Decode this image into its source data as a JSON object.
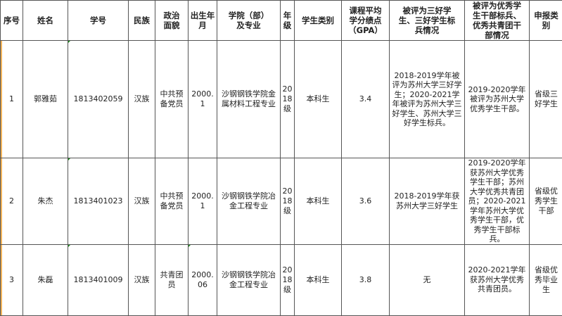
{
  "headers": [
    "序号",
    "姓名",
    "学号",
    "民族",
    "政治面貌",
    "出生年月",
    "学院（部）及专业",
    "年级",
    "学生类别",
    "课程平均学分绩点（GPA）",
    "被评为三好学生、三好学生标兵情况",
    "被评为优秀学生干部标兵、优秀共青团干部情况",
    "申报类别"
  ],
  "rows": [
    {
      "no": "1",
      "name": "郭雅茹",
      "id": "1813402059",
      "ethnicity": "汉族",
      "political": "中共预备党员",
      "birth": "2000.1",
      "college": "沙钢钢铁学院金属材料工程专业",
      "grade": "2018级",
      "type": "本科生",
      "gpa": "3.4",
      "merit": "2018-2019学年被评为苏州大学三好学生；2020-2021学年被评为苏州大学三好学生、苏州大学三好学生标兵。",
      "cadre": "2019-2020学年被评为苏州大学优秀学生干部。",
      "category": "省级三好学生"
    },
    {
      "no": "2",
      "name": "朱杰",
      "id": "1813401023",
      "ethnicity": "汉族",
      "political": "中共预备党员",
      "birth": "2000.1",
      "college": "沙钢钢铁学院冶金工程专业",
      "grade": "2018级",
      "type": "本科生",
      "gpa": "3.6",
      "merit": "2018-2019学年获苏州大学三好学生",
      "cadre": "2019-2020学年获苏州大学优秀学生干部；苏州大学优秀共青团员；2020-2021学年苏州大学优秀学生干部，优秀学生干部标兵。",
      "category": "省级优秀学生干部"
    },
    {
      "no": "3",
      "name": "朱磊",
      "id": "1813401009",
      "ethnicity": "汉族",
      "political": "共青团员",
      "birth": "2000.06",
      "college": "沙钢钢铁学院冶金工程专业",
      "grade": "2018级",
      "type": "本科生",
      "gpa": "3.8",
      "merit": "无",
      "cadre": "2020-2021学年获苏州大学优秀共青团员。",
      "category": "省级优秀毕业生"
    }
  ]
}
